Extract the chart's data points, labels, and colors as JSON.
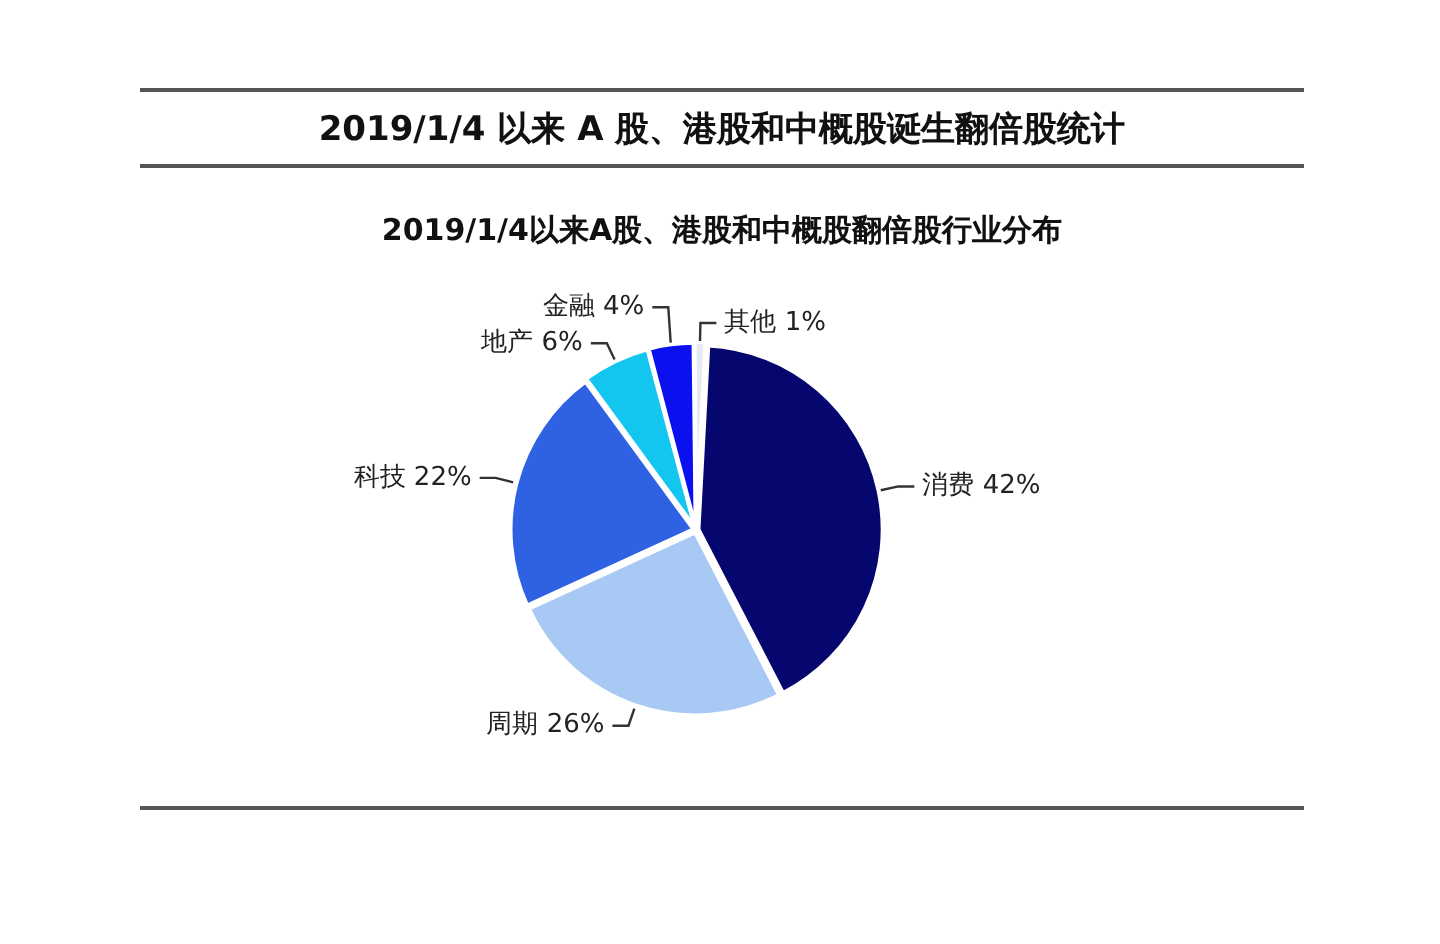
{
  "chart_data": {
    "type": "pie",
    "title": "2019/1/4 以来 A 股、港股和中概股诞生翻倍股统计",
    "subtitle": "2019/1/4以来A股、港股和中概股翻倍股行业分布",
    "categories": [
      "消费",
      "周期",
      "科技",
      "地产",
      "金融",
      "其他"
    ],
    "values": [
      42,
      26,
      22,
      6,
      4,
      1
    ],
    "value_labels": [
      "42%",
      "26%",
      "22%",
      "6%",
      "4%",
      "1%"
    ],
    "colors": [
      "#05066e",
      "#a8c9f4",
      "#2f62e2",
      "#12c6ef",
      "#0a10ee",
      "#e6e9f4"
    ],
    "legend": false
  }
}
